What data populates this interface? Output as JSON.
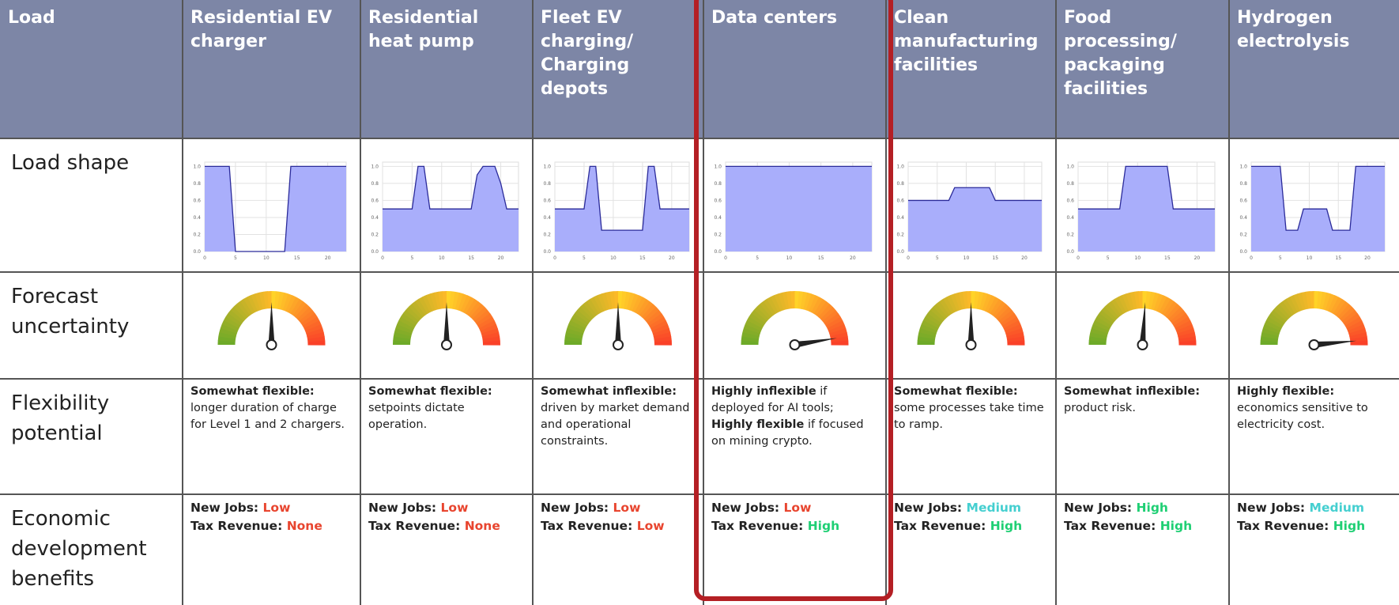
{
  "header": {
    "corner": "Load",
    "columns": [
      [
        "Residential EV",
        "charger"
      ],
      [
        "Residential",
        "heat pump"
      ],
      [
        "Fleet EV",
        "charging/",
        "Charging",
        "depots"
      ],
      [
        "Data centers"
      ],
      [
        "Clean",
        "manufacturing",
        "facilities"
      ],
      [
        "Food",
        "processing/",
        "packaging",
        "facilities"
      ],
      [
        "Hydrogen",
        "electrolysis"
      ]
    ]
  },
  "row_labels": [
    [
      "Load shape"
    ],
    [
      "Forecast",
      "uncertainty"
    ],
    [
      "Flexibility",
      "potential"
    ],
    [
      "Economic",
      "development",
      "benefits"
    ]
  ],
  "load_shape": {
    "type": "area",
    "xlim": [
      0,
      23
    ],
    "ylim": [
      0,
      1.05
    ],
    "xticks": [
      0,
      5,
      10,
      15,
      20
    ],
    "yticks": [
      {
        "value": 0,
        "label": "0.0"
      },
      0.2,
      0.4,
      0.6,
      0.8,
      {
        "value": 1,
        "label": "1.0"
      }
    ],
    "grid": true,
    "fill": "#a9aefb",
    "line_color": "#2b2b9a",
    "series": [
      {
        "x": [
          0,
          4,
          5,
          13,
          14,
          23
        ],
        "values": [
          1,
          1,
          0,
          0,
          1,
          1
        ]
      },
      {
        "x": [
          0,
          5,
          6,
          7,
          8,
          15,
          16,
          17,
          19,
          20,
          21,
          23
        ],
        "values": [
          0.5,
          0.5,
          1,
          1,
          0.5,
          0.5,
          0.9,
          1,
          1,
          0.8,
          0.5,
          0.5
        ]
      },
      {
        "x": [
          0,
          5,
          6,
          7,
          8,
          15,
          16,
          17,
          18,
          23
        ],
        "values": [
          0.5,
          0.5,
          1,
          1,
          0.25,
          0.25,
          1,
          1,
          0.5,
          0.5
        ]
      },
      {
        "x": [
          0,
          23
        ],
        "values": [
          1,
          1
        ]
      },
      {
        "x": [
          0,
          7,
          8,
          14,
          15,
          23
        ],
        "values": [
          0.6,
          0.6,
          0.75,
          0.75,
          0.6,
          0.6
        ]
      },
      {
        "x": [
          0,
          7,
          8,
          15,
          16,
          23
        ],
        "values": [
          0.5,
          0.5,
          1,
          1,
          0.5,
          0.5
        ]
      },
      {
        "x": [
          0,
          5,
          6,
          8,
          9,
          13,
          14,
          17,
          18,
          23
        ],
        "values": [
          1,
          1,
          0.25,
          0.25,
          0.5,
          0.5,
          0.25,
          0.25,
          1,
          1
        ]
      }
    ]
  },
  "forecast_uncertainty": {
    "values": [
      0.5,
      0.5,
      0.5,
      0.95,
      0.5,
      0.52,
      0.97
    ]
  },
  "flexibility": [
    [
      {
        "text": "Somewhat flexible:",
        "bold": true
      },
      {
        "text": "longer duration of charge for Level 1 and 2 chargers.",
        "newline": true
      }
    ],
    [
      {
        "text": "Somewhat flexible:",
        "bold": true
      },
      {
        "text": "setpoints dictate operation.",
        "newline": true
      }
    ],
    [
      {
        "text": "Somewhat inflexible:",
        "bold": true
      },
      {
        "text": "driven by market demand and operational constraints.",
        "newline": true
      }
    ],
    [
      {
        "text": "Highly inflexible",
        "bold": true
      },
      {
        "text": "if deployed for AI tools;"
      },
      {
        "text": "Highly flexible",
        "bold": true
      },
      {
        "text": "if focused on mining crypto."
      }
    ],
    [
      {
        "text": "Somewhat flexible:",
        "bold": true
      },
      {
        "text": "some processes take time to ramp.",
        "newline": true
      }
    ],
    [
      {
        "text": "Somewhat inflexible:",
        "bold": true
      },
      {
        "text": "product risk.",
        "newline": true
      }
    ],
    [
      {
        "text": "Highly flexible:",
        "bold": true
      },
      {
        "text": "economics sensitive to electricity cost.",
        "newline": true
      }
    ]
  ],
  "economic": {
    "jobs_label": "New Jobs:",
    "tax_label": "Tax Revenue:",
    "cells": [
      {
        "jobs": {
          "text": "Low",
          "color": "#e8452f"
        },
        "tax": {
          "text": "None",
          "color": "#e8452f"
        }
      },
      {
        "jobs": {
          "text": "Low",
          "color": "#e8452f"
        },
        "tax": {
          "text": "None",
          "color": "#e8452f"
        }
      },
      {
        "jobs": {
          "text": "Low",
          "color": "#e8452f"
        },
        "tax": {
          "text": "Low",
          "color": "#e8452f"
        }
      },
      {
        "jobs": {
          "text": "Low",
          "color": "#e8452f"
        },
        "tax": {
          "text": "High",
          "color": "#1fcf74"
        }
      },
      {
        "jobs": {
          "text": "Medium",
          "color": "#45cfd0"
        },
        "tax": {
          "text": "High",
          "color": "#1fcf74"
        }
      },
      {
        "jobs": {
          "text": "High",
          "color": "#1fcf74"
        },
        "tax": {
          "text": "High",
          "color": "#1fcf74"
        }
      },
      {
        "jobs": {
          "text": "Medium",
          "color": "#45cfd0"
        },
        "tax": {
          "text": "High",
          "color": "#1fcf74"
        }
      }
    ]
  }
}
